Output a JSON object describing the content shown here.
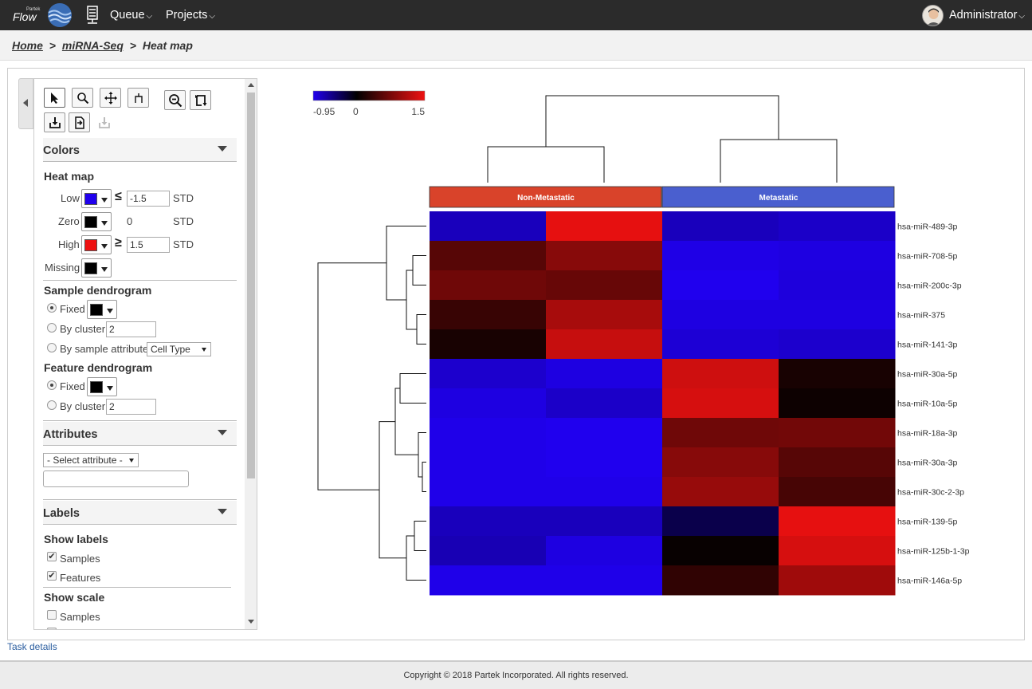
{
  "app": {
    "brand_small": "Partek",
    "brand": "Flow"
  },
  "nav": {
    "queue": "Queue",
    "projects": "Projects",
    "user": "Administrator"
  },
  "breadcrumb": {
    "home": "Home",
    "project": "miRNA-Seq",
    "current": "Heat map",
    "sep": ">"
  },
  "panel": {
    "colors": {
      "title": "Colors",
      "heatmap_title": "Heat map",
      "low_label": "Low",
      "low_op": "≤",
      "low_value": "-1.5",
      "low_color": "#2000ee",
      "zero_label": "Zero",
      "zero_value": "0",
      "zero_color": "#000000",
      "high_label": "High",
      "high_op": "≥",
      "high_value": "1.5",
      "high_color": "#ee1111",
      "missing_label": "Missing",
      "missing_color": "#000000",
      "std": "STD",
      "sample_dendro_title": "Sample dendrogram",
      "fixed_label": "Fixed",
      "fixed_color": "#000000",
      "by_cluster_label": "By cluster",
      "sample_cluster_value": "2",
      "by_attr_label": "By sample attribute",
      "by_attr_value": "Cell Type",
      "feature_dendro_title": "Feature dendrogram",
      "feature_cluster_value": "2"
    },
    "attributes": {
      "title": "Attributes",
      "select_placeholder": "- Select attribute -"
    },
    "labels": {
      "title": "Labels",
      "show_labels_title": "Show labels",
      "samples_label": "Samples",
      "features_label": "Features",
      "show_scale_title": "Show scale",
      "scale_samples_label": "Samples"
    }
  },
  "chart_data": {
    "type": "heatmap",
    "color_scale": {
      "min": -0.95,
      "mid": 0,
      "max": 1.5,
      "min_label": "-0.95",
      "mid_label": "0",
      "max_label": "1.5",
      "low_color": "#2000ee",
      "mid_color": "#000000",
      "high_color": "#ee1111"
    },
    "groups": [
      {
        "name": "Non-Metastatic",
        "color": "#d9432a",
        "columns": 2
      },
      {
        "name": "Metastatic",
        "color": "#4a5fcf",
        "columns": 2
      }
    ],
    "rows": [
      "hsa-miR-489-3p",
      "hsa-miR-708-5p",
      "hsa-miR-200c-3p",
      "hsa-miR-375",
      "hsa-miR-141-3p",
      "hsa-miR-30a-5p",
      "hsa-miR-10a-5p",
      "hsa-miR-18a-3p",
      "hsa-miR-30a-3p",
      "hsa-miR-30c-2-3p",
      "hsa-miR-139-5p",
      "hsa-miR-125b-1-3p",
      "hsa-miR-146a-5p"
    ],
    "values": [
      [
        -0.75,
        1.45,
        -0.75,
        -0.8
      ],
      [
        0.55,
        0.85,
        -0.92,
        -0.9
      ],
      [
        0.7,
        0.65,
        -0.95,
        -0.88
      ],
      [
        0.35,
        1.05,
        -0.9,
        -0.9
      ],
      [
        0.15,
        1.25,
        -0.85,
        -0.82
      ],
      [
        -0.82,
        -0.9,
        1.3,
        0.15
      ],
      [
        -0.9,
        -0.8,
        1.35,
        0.08
      ],
      [
        -0.93,
        -0.95,
        0.7,
        0.72
      ],
      [
        -0.93,
        -0.95,
        0.85,
        0.55
      ],
      [
        -0.93,
        -0.93,
        0.95,
        0.45
      ],
      [
        -0.75,
        -0.75,
        -0.3,
        1.45
      ],
      [
        -0.72,
        -0.9,
        0.05,
        1.35
      ],
      [
        -0.93,
        -0.93,
        0.3,
        1.0
      ]
    ]
  },
  "footer": {
    "task_details": "Task details",
    "copyright": "Copyright © 2018 Partek Incorporated. All rights reserved."
  }
}
